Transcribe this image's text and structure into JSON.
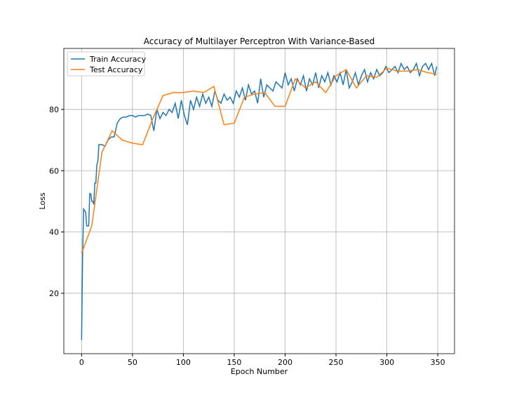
{
  "chart_data": {
    "type": "line",
    "title": "Accuracy of Multilayer Perceptron With Variance-Based",
    "xlabel": "Epoch Number",
    "ylabel": "Loss",
    "xlim": [
      -17.45,
      366.45
    ],
    "ylim": [
      0.3,
      99.9
    ],
    "xticks": [
      0,
      50,
      100,
      150,
      200,
      250,
      300,
      350
    ],
    "yticks": [
      20,
      40,
      60,
      80
    ],
    "grid": true,
    "legend": "upper left",
    "series": [
      {
        "name": "Train Accuracy",
        "color": "#1f77b4",
        "x": [
          0,
          1,
          2,
          3,
          4,
          5,
          6,
          7,
          8,
          9,
          10,
          11,
          12,
          13,
          14,
          15,
          16,
          17,
          18,
          19,
          20,
          23,
          26,
          29,
          32,
          35,
          38,
          41,
          44,
          47,
          50,
          53,
          56,
          59,
          62,
          65,
          68,
          71,
          74,
          77,
          80,
          83,
          86,
          89,
          92,
          95,
          98,
          101,
          104,
          107,
          110,
          113,
          116,
          119,
          122,
          125,
          128,
          131,
          134,
          137,
          140,
          143,
          146,
          149,
          152,
          155,
          158,
          161,
          164,
          167,
          170,
          173,
          176,
          179,
          182,
          185,
          188,
          191,
          194,
          197,
          200,
          203,
          206,
          209,
          212,
          215,
          218,
          221,
          224,
          227,
          230,
          233,
          236,
          239,
          242,
          245,
          248,
          251,
          254,
          257,
          260,
          263,
          266,
          269,
          272,
          275,
          278,
          281,
          284,
          287,
          290,
          293,
          296,
          299,
          302,
          305,
          308,
          311,
          314,
          317,
          320,
          323,
          326,
          329,
          332,
          335,
          338,
          341,
          344,
          347,
          349
        ],
        "values": [
          4.8,
          32,
          47.5,
          47,
          46.5,
          42,
          42,
          42,
          52.5,
          52.5,
          50,
          50,
          49,
          56,
          56,
          62,
          63,
          68.5,
          68.5,
          68.5,
          68.5,
          68,
          70,
          71,
          71,
          75.5,
          77,
          77.5,
          77.5,
          78,
          78,
          77.5,
          78,
          78,
          78,
          78.5,
          78,
          73,
          80,
          77,
          79,
          78,
          80,
          79,
          82,
          77,
          83,
          78,
          75,
          83,
          80,
          84,
          81,
          85,
          82,
          84,
          81,
          86,
          83,
          82,
          85,
          83,
          84,
          82,
          86,
          84,
          87,
          83,
          88,
          85,
          86,
          82,
          90,
          84,
          88,
          87,
          86,
          89,
          88,
          87,
          92,
          88,
          90,
          86,
          90,
          88,
          91,
          86,
          90,
          88,
          92,
          87,
          91,
          89,
          92,
          88,
          91,
          89,
          92,
          88,
          93,
          87,
          89,
          92,
          88,
          91,
          93,
          89,
          92,
          90,
          93,
          91,
          92,
          94,
          92,
          93,
          94,
          92,
          95,
          93,
          94,
          92,
          93,
          95,
          91,
          94,
          95,
          93,
          95,
          91,
          94
        ]
      },
      {
        "name": "Test Accuracy",
        "color": "#ff7f0e",
        "x": [
          0,
          10,
          20,
          30,
          40,
          50,
          60,
          70,
          80,
          90,
          100,
          110,
          120,
          130,
          140,
          150,
          160,
          170,
          180,
          190,
          200,
          210,
          220,
          230,
          240,
          250,
          260,
          270,
          280,
          290,
          300,
          310,
          320,
          330,
          340,
          349
        ],
        "values": [
          33,
          42,
          66,
          73,
          70,
          69,
          68.5,
          77,
          84.5,
          85.5,
          85.5,
          86,
          85.5,
          87.5,
          75,
          75.5,
          84,
          85,
          85.5,
          81,
          81,
          90,
          87,
          89,
          85.5,
          91,
          93,
          87,
          91,
          90.5,
          93.5,
          92.5,
          92.5,
          93,
          92,
          91.5
        ]
      }
    ]
  }
}
